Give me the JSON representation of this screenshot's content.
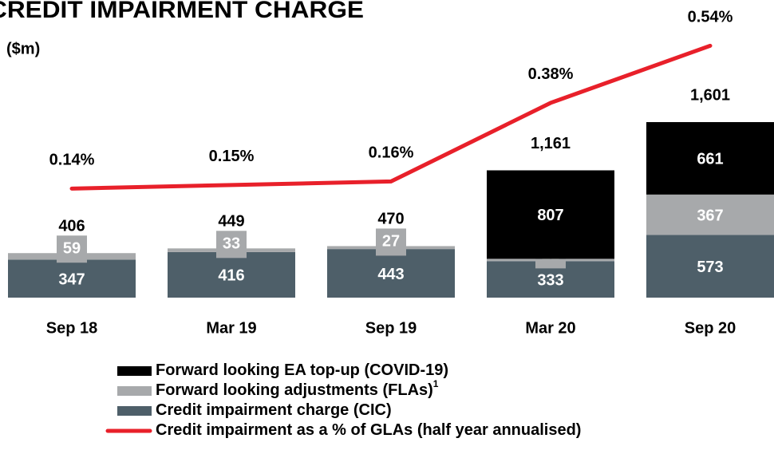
{
  "chart_data": {
    "type": "bar_line",
    "title": "CREDIT IMPAIRMENT CHARGE",
    "subtitle": "($m)",
    "categories": [
      "Sep 18",
      "Mar 19",
      "Sep 19",
      "Mar 20",
      "Sep 20"
    ],
    "series": [
      {
        "name": "Forward looking EA top-up (COVID-19)",
        "color": "#000000",
        "values": [
          null,
          null,
          null,
          807,
          661
        ]
      },
      {
        "name": "Forward looking adjustments (FLAs)",
        "name_note": "1",
        "color": "#a7a9ab",
        "values": [
          59,
          33,
          27,
          21,
          367
        ]
      },
      {
        "name": "Credit impairment charge (CIC)",
        "color": "#4e5f69",
        "values": [
          347,
          416,
          443,
          333,
          573
        ]
      },
      {
        "name": "Credit impairment as a % of GLAs (half year annualised)",
        "color": "#e8202a",
        "axis": "y2",
        "type": "line",
        "values": [
          0.14,
          0.15,
          0.16,
          0.38,
          0.54
        ],
        "value_labels": [
          "0.14%",
          "0.15%",
          "0.16%",
          "0.38%",
          "0.54%"
        ]
      }
    ],
    "totals": {
      "values": [
        406,
        449,
        470,
        1161,
        1601
      ],
      "value_labels": [
        "406",
        "449",
        "470",
        "1,161",
        "1,601"
      ]
    }
  }
}
